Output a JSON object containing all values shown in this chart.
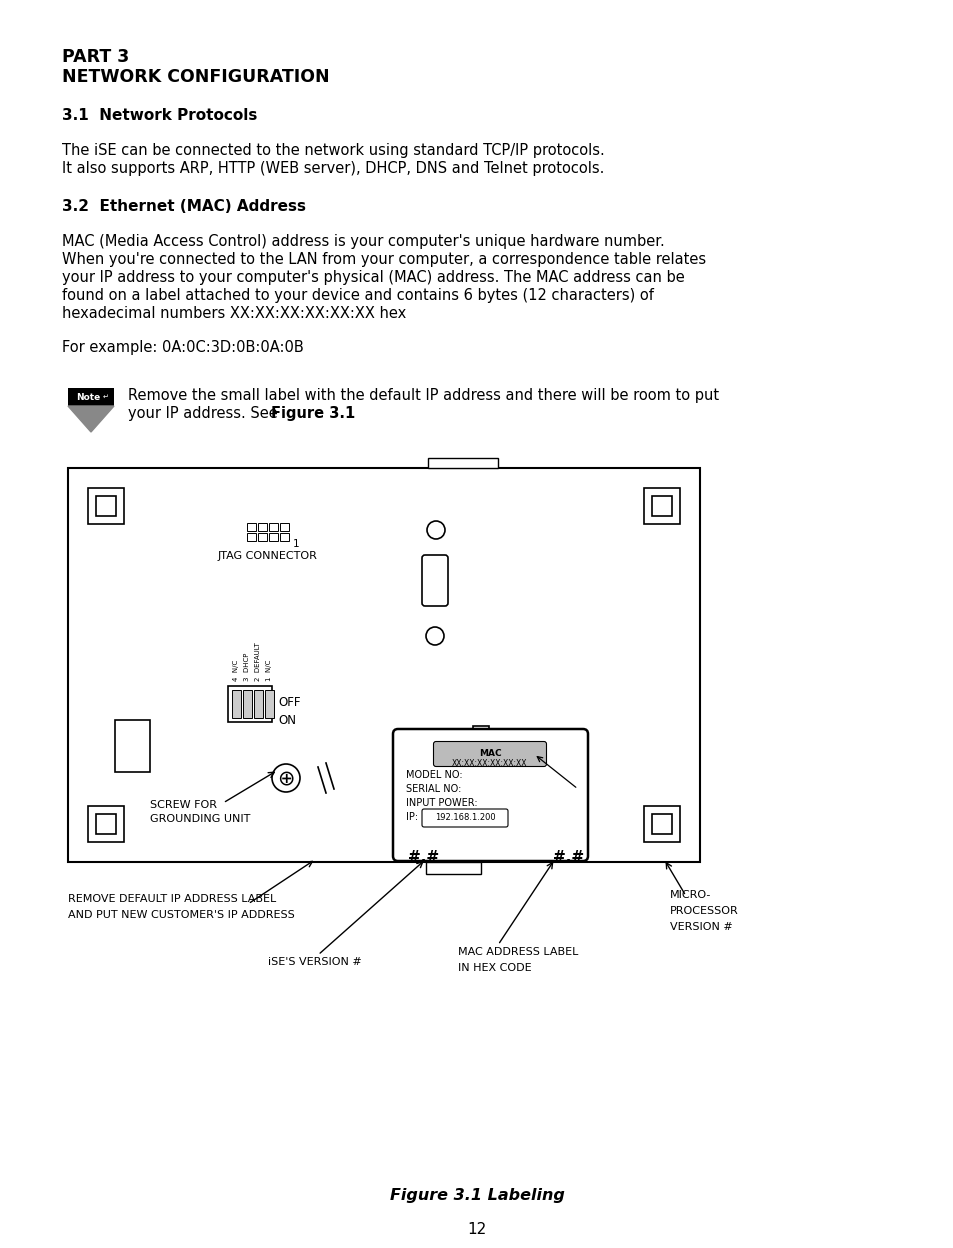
{
  "title_line1": "PART 3",
  "title_line2": "NETWORK CONFIGURATION",
  "section1_title": "3.1  Network Protocols",
  "section1_body1": "The iSE can be connected to the network using standard TCP/IP protocols.",
  "section1_body2": "It also supports ARP, HTTP (WEB server), DHCP, DNS and Telnet protocols.",
  "section2_title": "3.2  Ethernet (MAC) Address",
  "section2_body1": "MAC (Media Access Control) address is your computer's unique hardware number.",
  "section2_body2": "When you're connected to the LAN from your computer, a correspondence table relates",
  "section2_body3": "your IP address to your computer's physical (MAC) address. The MAC address can be",
  "section2_body4": "found on a label attached to your device and contains 6 bytes (12 characters) of",
  "section2_body5": "hexadecimal numbers XX:XX:XX:XX:XX:XX hex",
  "example_text": "For example: 0A:0C:3D:0B:0A:0B",
  "note_text1": "Remove the small label with the default IP address and there will be room to put",
  "note_text2": "your IP address. See ",
  "note_bold": "Figure 3.1",
  "figure_caption": "Figure 3.1 Labeling",
  "page_number": "12",
  "bg_color": "#ffffff",
  "text_color": "#000000"
}
